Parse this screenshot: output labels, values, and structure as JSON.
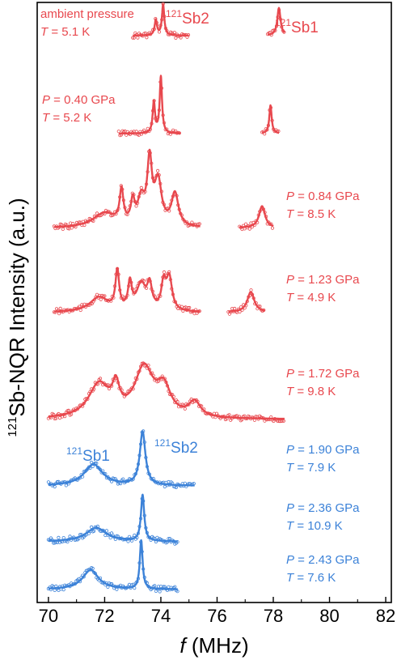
{
  "chart_data": {
    "type": "line",
    "xlabel_var": "f",
    "xlabel_unit": " (MHz)",
    "ylabel_sup": "121",
    "ylabel_main": "Sb-NQR Intensity (a.u.)",
    "xlim": [
      69.6,
      82.2
    ],
    "x_ticks": [
      70,
      72,
      74,
      76,
      78,
      80,
      82
    ],
    "grid": false,
    "colors": {
      "red": "#e8484e",
      "blue": "#3c82d8",
      "axis": "#000000"
    },
    "peak_labels": [
      {
        "sup": "121",
        "text": "Sb2",
        "color": "red"
      },
      {
        "sup": "121",
        "text": "Sb1",
        "color": "red"
      },
      {
        "sup": "121",
        "text": "Sb1",
        "color": "blue"
      },
      {
        "sup": "121",
        "text": "Sb2",
        "color": "blue"
      }
    ],
    "series": [
      {
        "condition_lines": [
          "ambient pressure",
          "T = 5.1 K"
        ],
        "color": "red",
        "segments": [
          [
            73.0,
            75.0
          ],
          [
            77.8,
            78.4
          ]
        ],
        "peaks": [
          [
            73.82,
            0.05,
            0.5
          ],
          [
            74.08,
            0.05,
            1.0
          ],
          [
            78.2,
            0.07,
            0.9
          ]
        ]
      },
      {
        "condition_lines": [
          "P = 0.40 GPa",
          "T =  5.2 K"
        ],
        "color": "red",
        "segments": [
          [
            72.5,
            74.7
          ],
          [
            77.6,
            78.2
          ]
        ],
        "peaks": [
          [
            73.75,
            0.05,
            0.55
          ],
          [
            74.0,
            0.05,
            1.0
          ],
          [
            77.9,
            0.05,
            0.5
          ]
        ]
      },
      {
        "condition_lines": [
          "P = 0.84 GPa",
          "T = 8.5 K"
        ],
        "color": "red",
        "segments": [
          [
            70.2,
            75.4
          ],
          [
            76.8,
            78.0
          ]
        ],
        "peaks": [
          [
            72.0,
            0.5,
            0.2
          ],
          [
            72.6,
            0.08,
            0.45
          ],
          [
            73.0,
            0.08,
            0.3
          ],
          [
            73.3,
            0.15,
            0.35
          ],
          [
            73.6,
            0.1,
            0.85
          ],
          [
            73.9,
            0.15,
            0.6
          ],
          [
            74.5,
            0.15,
            0.45
          ],
          [
            77.6,
            0.13,
            0.3
          ]
        ]
      },
      {
        "condition_lines": [
          "P = 1.23 GPa",
          "T = 4.9 K"
        ],
        "color": "red",
        "segments": [
          [
            70.2,
            75.4
          ],
          [
            76.4,
            77.7
          ]
        ],
        "peaks": [
          [
            71.8,
            0.4,
            0.25
          ],
          [
            72.45,
            0.08,
            0.65
          ],
          [
            72.9,
            0.08,
            0.45
          ],
          [
            73.3,
            0.2,
            0.45
          ],
          [
            73.6,
            0.1,
            0.4
          ],
          [
            74.1,
            0.1,
            0.45
          ],
          [
            74.3,
            0.12,
            0.55
          ],
          [
            77.2,
            0.15,
            0.35
          ]
        ]
      },
      {
        "condition_lines": [
          "P = 1.72 GPa",
          "T = 9.8 K"
        ],
        "color": "red",
        "segments": [
          [
            70.0,
            78.4
          ]
        ],
        "peaks": [
          [
            71.8,
            0.45,
            0.55
          ],
          [
            72.4,
            0.15,
            0.4
          ],
          [
            73.4,
            0.4,
            0.8
          ],
          [
            74.1,
            0.3,
            0.45
          ],
          [
            75.2,
            0.25,
            0.25
          ]
        ]
      },
      {
        "condition_lines": [
          "P = 1.90 GPa",
          "T = 7.9 K"
        ],
        "color": "blue",
        "segments": [
          [
            70.0,
            75.2
          ]
        ],
        "peaks": [
          [
            71.6,
            0.4,
            0.4
          ],
          [
            73.35,
            0.12,
            1.0
          ]
        ]
      },
      {
        "condition_lines": [
          "P = 2.36 GPa",
          "T = 10.9 K"
        ],
        "color": "blue",
        "segments": [
          [
            70.0,
            74.6
          ]
        ],
        "peaks": [
          [
            71.7,
            0.45,
            0.3
          ],
          [
            73.35,
            0.07,
            1.0
          ]
        ]
      },
      {
        "condition_lines": [
          "P = 2.43 GPa",
          "T = 7.6 K"
        ],
        "color": "blue",
        "segments": [
          [
            70.0,
            74.6
          ]
        ],
        "peaks": [
          [
            71.5,
            0.35,
            0.4
          ],
          [
            73.3,
            0.06,
            1.0
          ]
        ]
      }
    ]
  }
}
